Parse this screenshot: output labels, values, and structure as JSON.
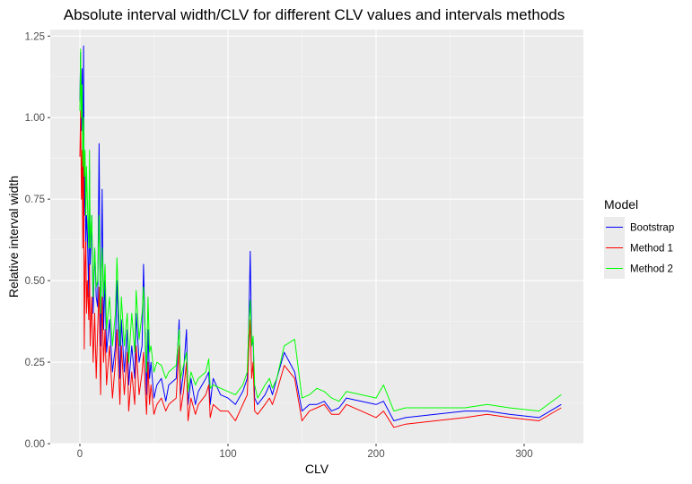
{
  "chart_data": {
    "type": "line",
    "title": "Absolute interval width/CLV for different CLV values and intervals methods",
    "xlabel": "CLV",
    "ylabel": "Relative interval width",
    "xlim": [
      -20,
      340
    ],
    "ylim": [
      0,
      1.27
    ],
    "x_ticks": [
      0,
      100,
      200,
      300
    ],
    "y_ticks": [
      0.0,
      0.25,
      0.5,
      0.75,
      1.0,
      1.25
    ],
    "x_tick_labels": [
      "0",
      "100",
      "200",
      "300"
    ],
    "y_tick_labels": [
      "0.00",
      "0.25",
      "0.50",
      "0.75",
      "1.00",
      "1.25"
    ],
    "grid": true,
    "background": "#ebebeb",
    "legend": {
      "title": "Model",
      "position": "right"
    },
    "series": [
      {
        "name": "Bootstrap",
        "color": "#0000ff",
        "points": [
          [
            0,
            1.05
          ],
          [
            0.5,
            1.2
          ],
          [
            1,
            0.96
          ],
          [
            1.5,
            1.15
          ],
          [
            2,
            0.8
          ],
          [
            2.5,
            1.22
          ],
          [
            3,
            0.7
          ],
          [
            3.5,
            0.84
          ],
          [
            4,
            0.6
          ],
          [
            4.5,
            0.7
          ],
          [
            5,
            0.65
          ],
          [
            6,
            0.45
          ],
          [
            6.5,
            0.84
          ],
          [
            7,
            0.55
          ],
          [
            8,
            0.7
          ],
          [
            9,
            0.4
          ],
          [
            10,
            0.6
          ],
          [
            11,
            0.45
          ],
          [
            12,
            0.42
          ],
          [
            13,
            0.92
          ],
          [
            14,
            0.3
          ],
          [
            15,
            0.78
          ],
          [
            16,
            0.35
          ],
          [
            17,
            0.5
          ],
          [
            18,
            0.28
          ],
          [
            20,
            0.38
          ],
          [
            22,
            0.22
          ],
          [
            24,
            0.3
          ],
          [
            25,
            0.5
          ],
          [
            27,
            0.2
          ],
          [
            28,
            0.38
          ],
          [
            30,
            0.22
          ],
          [
            32,
            0.35
          ],
          [
            33,
            0.18
          ],
          [
            35,
            0.3
          ],
          [
            37,
            0.2
          ],
          [
            38,
            0.4
          ],
          [
            40,
            0.25
          ],
          [
            42,
            0.3
          ],
          [
            43,
            0.55
          ],
          [
            45,
            0.15
          ],
          [
            46,
            0.35
          ],
          [
            47,
            0.2
          ],
          [
            48,
            0.25
          ],
          [
            50,
            0.14
          ],
          [
            52,
            0.18
          ],
          [
            55,
            0.2
          ],
          [
            58,
            0.13
          ],
          [
            60,
            0.18
          ],
          [
            65,
            0.2
          ],
          [
            67,
            0.38
          ],
          [
            68,
            0.15
          ],
          [
            70,
            0.22
          ],
          [
            72,
            0.35
          ],
          [
            73,
            0.12
          ],
          [
            75,
            0.2
          ],
          [
            78,
            0.12
          ],
          [
            80,
            0.16
          ],
          [
            85,
            0.2
          ],
          [
            87,
            0.22
          ],
          [
            88,
            0.12
          ],
          [
            90,
            0.2
          ],
          [
            95,
            0.15
          ],
          [
            100,
            0.14
          ],
          [
            105,
            0.12
          ],
          [
            110,
            0.16
          ],
          [
            113,
            0.2
          ],
          [
            114,
            0.35
          ],
          [
            115,
            0.59
          ],
          [
            116,
            0.3
          ],
          [
            117,
            0.32
          ],
          [
            118,
            0.14
          ],
          [
            120,
            0.12
          ],
          [
            125,
            0.15
          ],
          [
            128,
            0.18
          ],
          [
            130,
            0.15
          ],
          [
            133,
            0.2
          ],
          [
            138,
            0.28
          ],
          [
            145,
            0.22
          ],
          [
            150,
            0.1
          ],
          [
            155,
            0.12
          ],
          [
            160,
            0.12
          ],
          [
            165,
            0.13
          ],
          [
            170,
            0.1
          ],
          [
            175,
            0.11
          ],
          [
            180,
            0.14
          ],
          [
            190,
            0.13
          ],
          [
            200,
            0.12
          ],
          [
            205,
            0.13
          ],
          [
            212,
            0.07
          ],
          [
            220,
            0.08
          ],
          [
            240,
            0.09
          ],
          [
            260,
            0.1
          ],
          [
            275,
            0.1
          ],
          [
            290,
            0.09
          ],
          [
            310,
            0.08
          ],
          [
            325,
            0.12
          ]
        ]
      },
      {
        "name": "Method 1",
        "color": "#ff0000",
        "points": [
          [
            0,
            0.88
          ],
          [
            0.5,
            1.02
          ],
          [
            1,
            0.75
          ],
          [
            1.5,
            0.9
          ],
          [
            2,
            0.6
          ],
          [
            2.5,
            0.95
          ],
          [
            3,
            0.29
          ],
          [
            3.5,
            0.55
          ],
          [
            4,
            0.62
          ],
          [
            4.5,
            0.4
          ],
          [
            5,
            0.5
          ],
          [
            6,
            0.38
          ],
          [
            6.5,
            0.55
          ],
          [
            7,
            0.3
          ],
          [
            8,
            0.45
          ],
          [
            9,
            0.25
          ],
          [
            10,
            0.4
          ],
          [
            11,
            0.2
          ],
          [
            12,
            0.35
          ],
          [
            13,
            0.48
          ],
          [
            14,
            0.15
          ],
          [
            15,
            0.45
          ],
          [
            16,
            0.25
          ],
          [
            17,
            0.35
          ],
          [
            18,
            0.18
          ],
          [
            20,
            0.3
          ],
          [
            22,
            0.14
          ],
          [
            24,
            0.25
          ],
          [
            25,
            0.35
          ],
          [
            27,
            0.12
          ],
          [
            28,
            0.3
          ],
          [
            30,
            0.15
          ],
          [
            32,
            0.28
          ],
          [
            33,
            0.1
          ],
          [
            35,
            0.22
          ],
          [
            37,
            0.12
          ],
          [
            38,
            0.3
          ],
          [
            40,
            0.15
          ],
          [
            42,
            0.22
          ],
          [
            43,
            0.28
          ],
          [
            45,
            0.09
          ],
          [
            46,
            0.25
          ],
          [
            47,
            0.12
          ],
          [
            48,
            0.18
          ],
          [
            50,
            0.09
          ],
          [
            52,
            0.12
          ],
          [
            55,
            0.14
          ],
          [
            58,
            0.1
          ],
          [
            60,
            0.12
          ],
          [
            65,
            0.14
          ],
          [
            67,
            0.3
          ],
          [
            68,
            0.1
          ],
          [
            70,
            0.16
          ],
          [
            72,
            0.25
          ],
          [
            73,
            0.07
          ],
          [
            75,
            0.14
          ],
          [
            78,
            0.09
          ],
          [
            80,
            0.12
          ],
          [
            85,
            0.15
          ],
          [
            87,
            0.18
          ],
          [
            88,
            0.08
          ],
          [
            90,
            0.12
          ],
          [
            95,
            0.1
          ],
          [
            100,
            0.1
          ],
          [
            105,
            0.07
          ],
          [
            110,
            0.12
          ],
          [
            113,
            0.15
          ],
          [
            114,
            0.28
          ],
          [
            115,
            0.38
          ],
          [
            116,
            0.2
          ],
          [
            117,
            0.25
          ],
          [
            118,
            0.1
          ],
          [
            120,
            0.09
          ],
          [
            125,
            0.12
          ],
          [
            128,
            0.14
          ],
          [
            130,
            0.12
          ],
          [
            133,
            0.16
          ],
          [
            138,
            0.24
          ],
          [
            145,
            0.2
          ],
          [
            150,
            0.07
          ],
          [
            155,
            0.1
          ],
          [
            160,
            0.11
          ],
          [
            165,
            0.12
          ],
          [
            170,
            0.09
          ],
          [
            175,
            0.09
          ],
          [
            180,
            0.12
          ],
          [
            190,
            0.1
          ],
          [
            200,
            0.08
          ],
          [
            205,
            0.1
          ],
          [
            212,
            0.05
          ],
          [
            220,
            0.06
          ],
          [
            240,
            0.07
          ],
          [
            260,
            0.08
          ],
          [
            275,
            0.09
          ],
          [
            290,
            0.08
          ],
          [
            310,
            0.07
          ],
          [
            325,
            0.11
          ]
        ]
      },
      {
        "name": "Method 2",
        "color": "#00ff00",
        "points": [
          [
            0,
            1.02
          ],
          [
            0.5,
            1.21
          ],
          [
            1,
            1.0
          ],
          [
            1.5,
            1.1
          ],
          [
            2,
            0.85
          ],
          [
            2.5,
            1.0
          ],
          [
            3,
            0.82
          ],
          [
            3.5,
            0.9
          ],
          [
            4,
            0.7
          ],
          [
            4.5,
            0.85
          ],
          [
            5,
            0.75
          ],
          [
            6,
            0.6
          ],
          [
            6.5,
            0.9
          ],
          [
            7,
            0.6
          ],
          [
            8,
            0.7
          ],
          [
            9,
            0.45
          ],
          [
            10,
            0.6
          ],
          [
            11,
            0.48
          ],
          [
            12,
            0.5
          ],
          [
            13,
            0.7
          ],
          [
            14,
            0.4
          ],
          [
            15,
            0.6
          ],
          [
            16,
            0.45
          ],
          [
            17,
            0.55
          ],
          [
            18,
            0.35
          ],
          [
            20,
            0.45
          ],
          [
            22,
            0.3
          ],
          [
            24,
            0.4
          ],
          [
            25,
            0.57
          ],
          [
            27,
            0.3
          ],
          [
            28,
            0.45
          ],
          [
            30,
            0.3
          ],
          [
            32,
            0.4
          ],
          [
            33,
            0.25
          ],
          [
            35,
            0.4
          ],
          [
            37,
            0.28
          ],
          [
            38,
            0.47
          ],
          [
            40,
            0.32
          ],
          [
            42,
            0.4
          ],
          [
            43,
            0.48
          ],
          [
            45,
            0.22
          ],
          [
            46,
            0.45
          ],
          [
            47,
            0.28
          ],
          [
            48,
            0.3
          ],
          [
            50,
            0.22
          ],
          [
            52,
            0.25
          ],
          [
            55,
            0.24
          ],
          [
            58,
            0.2
          ],
          [
            60,
            0.22
          ],
          [
            65,
            0.24
          ],
          [
            67,
            0.35
          ],
          [
            68,
            0.2
          ],
          [
            70,
            0.24
          ],
          [
            72,
            0.28
          ],
          [
            73,
            0.16
          ],
          [
            75,
            0.22
          ],
          [
            78,
            0.18
          ],
          [
            80,
            0.2
          ],
          [
            85,
            0.22
          ],
          [
            87,
            0.26
          ],
          [
            88,
            0.17
          ],
          [
            90,
            0.18
          ],
          [
            95,
            0.17
          ],
          [
            100,
            0.16
          ],
          [
            105,
            0.15
          ],
          [
            110,
            0.18
          ],
          [
            113,
            0.22
          ],
          [
            114,
            0.35
          ],
          [
            115,
            0.44
          ],
          [
            116,
            0.3
          ],
          [
            117,
            0.33
          ],
          [
            118,
            0.18
          ],
          [
            120,
            0.14
          ],
          [
            125,
            0.18
          ],
          [
            128,
            0.2
          ],
          [
            130,
            0.17
          ],
          [
            133,
            0.2
          ],
          [
            138,
            0.3
          ],
          [
            145,
            0.32
          ],
          [
            150,
            0.14
          ],
          [
            155,
            0.15
          ],
          [
            160,
            0.17
          ],
          [
            165,
            0.16
          ],
          [
            170,
            0.14
          ],
          [
            175,
            0.13
          ],
          [
            180,
            0.16
          ],
          [
            190,
            0.15
          ],
          [
            200,
            0.14
          ],
          [
            205,
            0.18
          ],
          [
            212,
            0.1
          ],
          [
            220,
            0.11
          ],
          [
            240,
            0.11
          ],
          [
            260,
            0.11
          ],
          [
            275,
            0.12
          ],
          [
            290,
            0.11
          ],
          [
            310,
            0.1
          ],
          [
            325,
            0.15
          ]
        ]
      }
    ]
  }
}
